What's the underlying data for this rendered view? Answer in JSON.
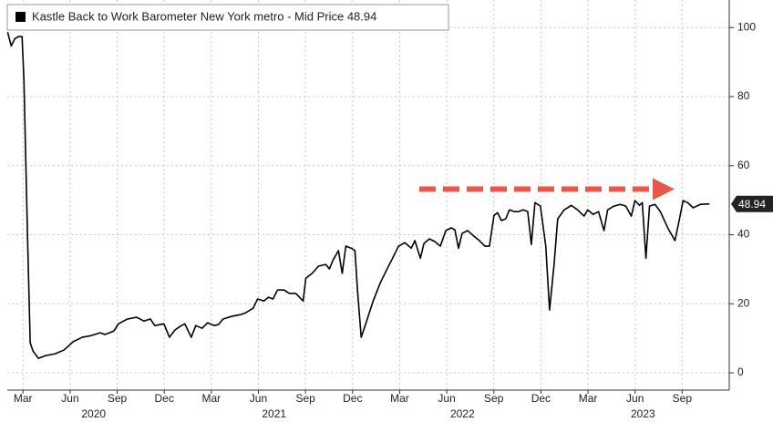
{
  "chart_data": {
    "type": "line",
    "series": [
      {
        "name": "Kastle Back to Work Barometer New York metro - Mid Price 48.94",
        "color": "#000000",
        "x": [
          1.02,
          1.25,
          1.48,
          1.71,
          1.94,
          2.06,
          2.29,
          2.46,
          2.64,
          2.98,
          3.45,
          4.03,
          4.61,
          5.19,
          5.77,
          6.35,
          6.92,
          7.21,
          7.79,
          8.08,
          8.66,
          9.24,
          9.71,
          10.11,
          10.4,
          10.98,
          11.33,
          11.68,
          12.02,
          12.31,
          12.72,
          13.01,
          13.41,
          13.76,
          14.17,
          14.46,
          14.75,
          15.33,
          15.9,
          16.19,
          16.66,
          16.95,
          17.35,
          17.64,
          17.93,
          18.22,
          18.63,
          18.98,
          19.38,
          19.85,
          20.02,
          20.42,
          20.83,
          21.29,
          21.52,
          21.76,
          22.1,
          22.34,
          22.57,
          22.92,
          23.15,
          23.32,
          23.55,
          23.84,
          24.31,
          24.77,
          25.17,
          25.58,
          25.93,
          26.33,
          26.74,
          26.97,
          27.32,
          27.55,
          27.9,
          28.25,
          28.59,
          28.94,
          29.29,
          29.52,
          29.75,
          29.98,
          30.33,
          30.68,
          31.03,
          31.43,
          31.72,
          32.01,
          32.24,
          32.48,
          32.76,
          32.99,
          33.29,
          33.58,
          33.87,
          34.16,
          34.39,
          34.62,
          34.97,
          35.31,
          35.55,
          35.84,
          36.07,
          36.48,
          36.94,
          37.34,
          37.75,
          37.98,
          38.33,
          38.67,
          39.02,
          39.25,
          39.66,
          40.06,
          40.41,
          40.76,
          40.99,
          41.28,
          41.46,
          41.69,
          41.92,
          42.27,
          42.61,
          43.08,
          43.54,
          43.83,
          44.06,
          44.35,
          44.7,
          45.16,
          45.74
        ],
        "values": [
          98.7,
          94.7,
          96.8,
          97.4,
          97.4,
          85,
          39.3,
          8.7,
          6.3,
          4.2,
          5.0,
          5.5,
          6.6,
          9.0,
          10.3,
          10.8,
          11.6,
          11.1,
          12.1,
          14.2,
          15.6,
          16.1,
          15.0,
          15.6,
          13.7,
          14.2,
          10.3,
          12.4,
          13.5,
          14.2,
          10.3,
          13.7,
          12.9,
          14.5,
          13.7,
          14.0,
          15.6,
          16.4,
          16.9,
          17.4,
          18.7,
          21.4,
          20.8,
          21.9,
          21.4,
          24.0,
          24.0,
          23.0,
          23.0,
          20.8,
          27.4,
          28.8,
          30.9,
          31.4,
          30.1,
          32.7,
          35.4,
          28.8,
          36.7,
          36.1,
          35.4,
          23.5,
          10.3,
          14.2,
          20.8,
          26.1,
          29.8,
          33.5,
          36.7,
          37.7,
          36.1,
          38.3,
          33.2,
          37.5,
          38.8,
          38.0,
          36.7,
          41.2,
          42.0,
          41.4,
          36.1,
          40.4,
          41.2,
          39.8,
          38.5,
          36.7,
          36.7,
          45.6,
          46.4,
          44.1,
          44.6,
          47.2,
          46.7,
          46.7,
          47.2,
          46.7,
          37.2,
          49.3,
          48.3,
          36.7,
          18.2,
          31.4,
          44.6,
          47.2,
          48.5,
          47.2,
          45.4,
          47.2,
          45.9,
          46.7,
          41.2,
          47.2,
          48.3,
          48.8,
          48.3,
          45.4,
          49.9,
          48.5,
          49.3,
          33.2,
          48.3,
          48.8,
          46.7,
          42.0,
          38.3,
          44.6,
          49.9,
          49.3,
          47.8,
          48.8,
          48.94
        ]
      }
    ],
    "xlim": [
      1,
      47
    ],
    "xticks": [
      {
        "value": 2,
        "label": "Mar"
      },
      {
        "value": 5,
        "label": "Jun"
      },
      {
        "value": 8,
        "label": "Sep"
      },
      {
        "value": 11,
        "label": "Dec"
      },
      {
        "value": 14,
        "label": "Mar"
      },
      {
        "value": 17,
        "label": "Jun"
      },
      {
        "value": 20,
        "label": "Sep"
      },
      {
        "value": 23,
        "label": "Dec"
      },
      {
        "value": 26,
        "label": "Mar"
      },
      {
        "value": 29,
        "label": "Jun"
      },
      {
        "value": 32,
        "label": "Sep"
      },
      {
        "value": 35,
        "label": "Dec"
      },
      {
        "value": 38,
        "label": "Mar"
      },
      {
        "value": 41,
        "label": "Jun"
      },
      {
        "value": 44,
        "label": "Sep"
      }
    ],
    "year_labels": [
      {
        "value": 6.5,
        "label": "2020"
      },
      {
        "value": 18,
        "label": "2021"
      },
      {
        "value": 30,
        "label": "2022"
      },
      {
        "value": 41.5,
        "label": "2023"
      }
    ],
    "ylim": [
      -5,
      108
    ],
    "yticks": [
      0,
      20,
      40,
      60,
      80,
      100
    ],
    "grid": true,
    "legend": "upper left"
  }
}
